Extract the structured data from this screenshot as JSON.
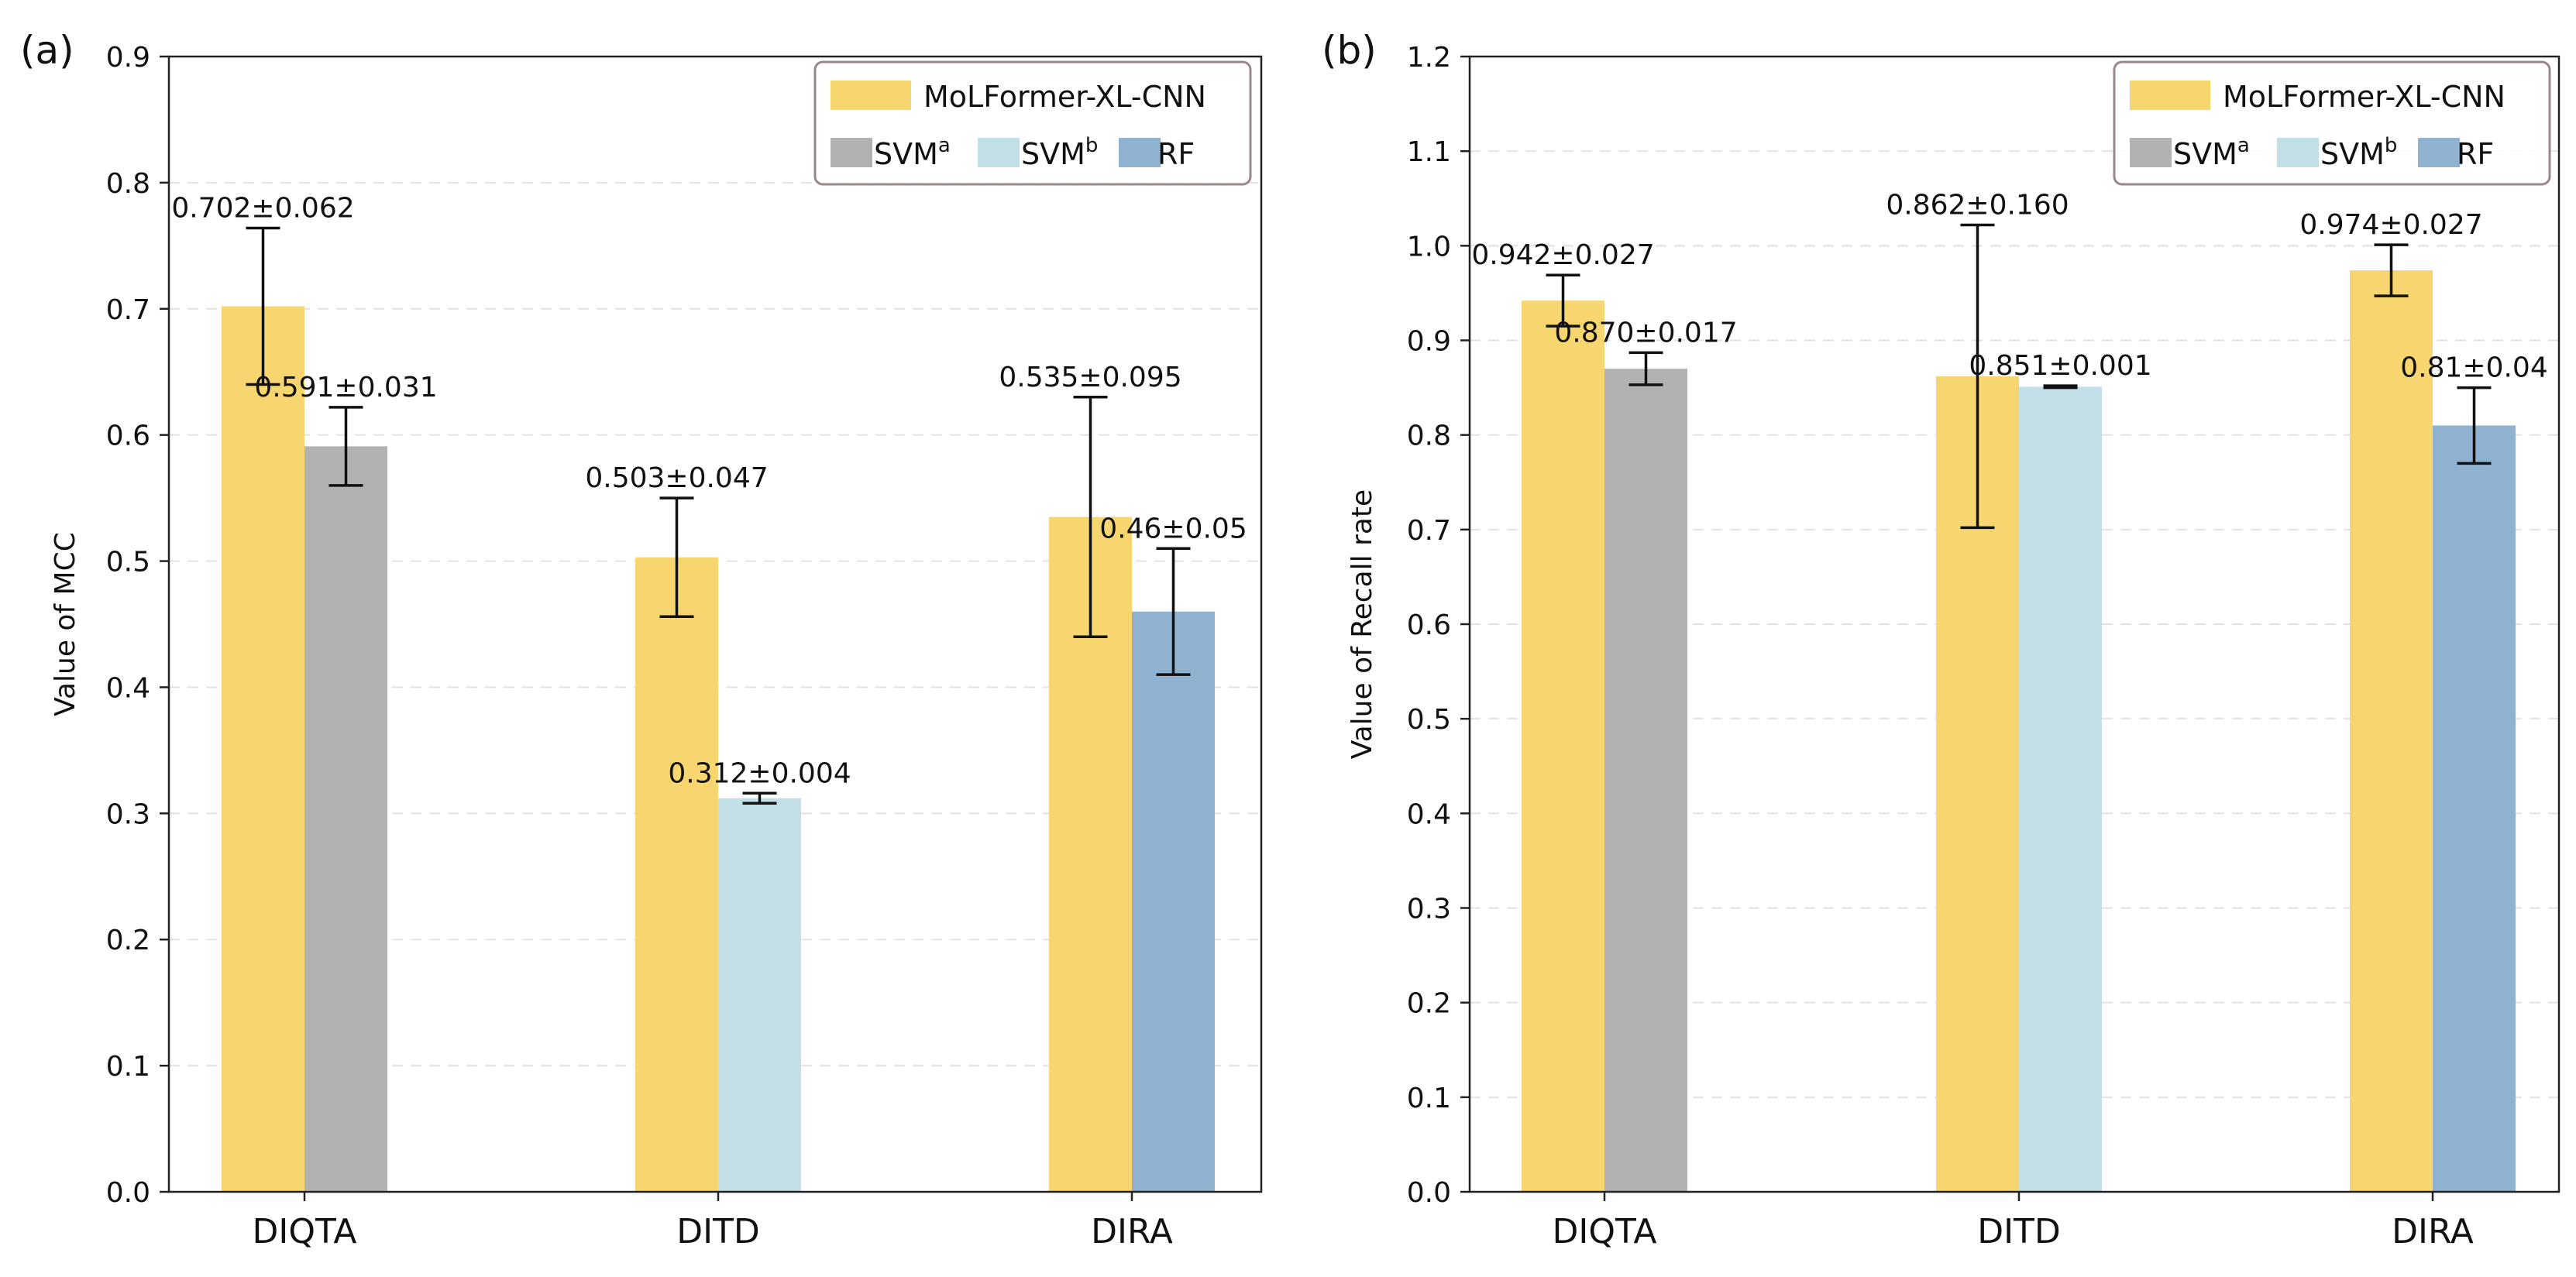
{
  "colors": {
    "MoLFormer-XL-CNN": "#f8d66f",
    "SVM_a": "#b2b2b2",
    "SVM_b": "#c2dfe8",
    "RF": "#8fb2d0",
    "grid": "#e2e2e2",
    "axis": "#222222",
    "legend_border": "#9a8888"
  },
  "chart_data": [
    {
      "type": "bar",
      "panel_label": "(a)",
      "title": "",
      "xlabel": "",
      "ylabel": "Value of MCC",
      "ylim": [
        0,
        0.9
      ],
      "yticks": [
        "0.0",
        "0.1",
        "0.2",
        "0.3",
        "0.4",
        "0.5",
        "0.6",
        "0.7",
        "0.8",
        "0.9"
      ],
      "grid": "horizontal dashed",
      "legend_position": "top-right",
      "categories": [
        "DIQTA",
        "DITD",
        "DIRA"
      ],
      "bars": [
        {
          "category": "DIQTA",
          "series": "MoLFormer-XL-CNN",
          "value": 0.702,
          "err": 0.062,
          "label": "0.702±0.062"
        },
        {
          "category": "DIQTA",
          "series": "SVM_a",
          "value": 0.591,
          "err": 0.031,
          "label": "0.591±0.031"
        },
        {
          "category": "DITD",
          "series": "MoLFormer-XL-CNN",
          "value": 0.503,
          "err": 0.047,
          "label": "0.503±0.047"
        },
        {
          "category": "DITD",
          "series": "SVM_b",
          "value": 0.312,
          "err": 0.004,
          "label": "0.312±0.004"
        },
        {
          "category": "DIRA",
          "series": "MoLFormer-XL-CNN",
          "value": 0.535,
          "err": 0.095,
          "label": "0.535±0.095"
        },
        {
          "category": "DIRA",
          "series": "RF",
          "value": 0.46,
          "err": 0.05,
          "label": "0.46±0.05"
        }
      ],
      "legend": [
        {
          "series": "MoLFormer-XL-CNN",
          "text": "MoLFormer-XL-CNN",
          "sup": ""
        },
        {
          "series": "SVM_a",
          "text": "SVM",
          "sup": "a"
        },
        {
          "series": "SVM_b",
          "text": "SVM",
          "sup": "b"
        },
        {
          "series": "RF",
          "text": "RF",
          "sup": ""
        }
      ]
    },
    {
      "type": "bar",
      "panel_label": "(b)",
      "title": "",
      "xlabel": "",
      "ylabel": "Value of Recall rate",
      "ylim": [
        0,
        1.2
      ],
      "yticks": [
        "0.0",
        "0.1",
        "0.2",
        "0.3",
        "0.4",
        "0.5",
        "0.6",
        "0.7",
        "0.8",
        "0.9",
        "1.0",
        "1.1",
        "1.2"
      ],
      "grid": "horizontal dashed",
      "legend_position": "top-right",
      "categories": [
        "DIQTA",
        "DITD",
        "DIRA"
      ],
      "bars": [
        {
          "category": "DIQTA",
          "series": "MoLFormer-XL-CNN",
          "value": 0.942,
          "err": 0.027,
          "label": "0.942±0.027"
        },
        {
          "category": "DIQTA",
          "series": "SVM_a",
          "value": 0.87,
          "err": 0.017,
          "label": "0.870±0.017"
        },
        {
          "category": "DITD",
          "series": "MoLFormer-XL-CNN",
          "value": 0.862,
          "err": 0.16,
          "label": "0.862±0.160"
        },
        {
          "category": "DITD",
          "series": "SVM_b",
          "value": 0.851,
          "err": 0.001,
          "label": "0.851±0.001"
        },
        {
          "category": "DIRA",
          "series": "MoLFormer-XL-CNN",
          "value": 0.974,
          "err": 0.027,
          "label": "0.974±0.027"
        },
        {
          "category": "DIRA",
          "series": "RF",
          "value": 0.81,
          "err": 0.04,
          "label": "0.81±0.04"
        }
      ],
      "legend": [
        {
          "series": "MoLFormer-XL-CNN",
          "text": "MoLFormer-XL-CNN",
          "sup": ""
        },
        {
          "series": "SVM_a",
          "text": "SVM",
          "sup": "a"
        },
        {
          "series": "SVM_b",
          "text": "SVM",
          "sup": "b"
        },
        {
          "series": "RF",
          "text": "RF",
          "sup": ""
        }
      ]
    }
  ]
}
